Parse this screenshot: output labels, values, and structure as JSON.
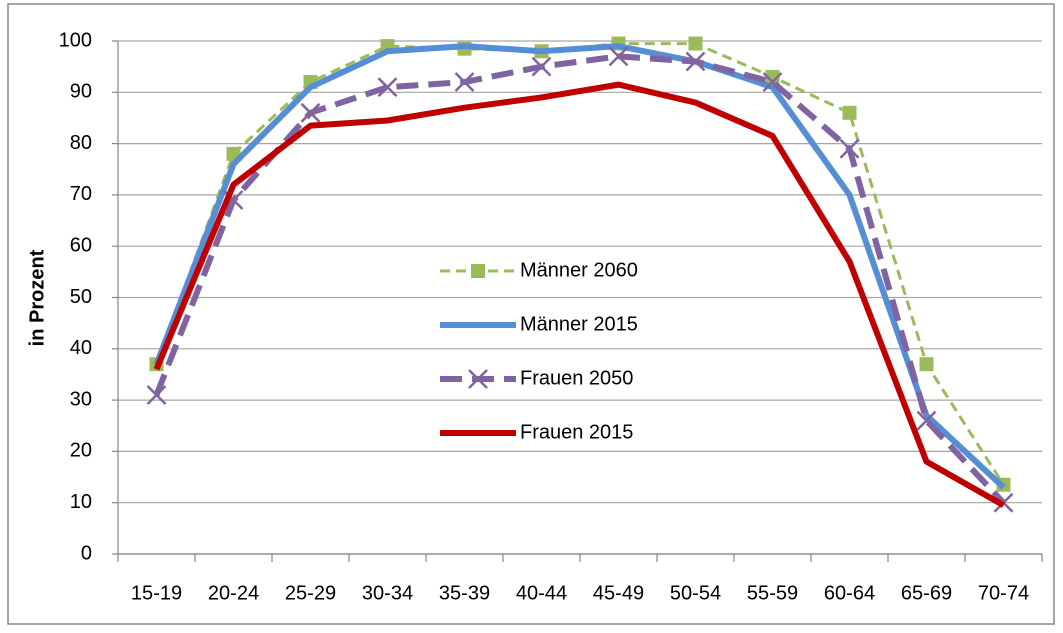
{
  "chart_data": {
    "type": "line",
    "y_label": "in Prozent",
    "categories": [
      "15-19",
      "20-24",
      "25-29",
      "30-34",
      "35-39",
      "40-44",
      "45-49",
      "50-54",
      "55-59",
      "60-64",
      "65-69",
      "70-74"
    ],
    "series": [
      {
        "name": "Männer 2060",
        "color": "#9bbb59",
        "style": "dotted-dash",
        "width": 3,
        "marker": "square",
        "values": [
          37,
          78,
          92,
          99,
          98.5,
          98,
          99.5,
          99.5,
          93,
          86,
          37,
          13.5
        ]
      },
      {
        "name": "Männer 2015",
        "color": "#558ed5",
        "style": "solid",
        "width": 6,
        "marker": "none",
        "values": [
          37,
          76,
          91,
          98,
          99,
          98,
          99,
          96,
          91,
          70,
          27,
          13
        ]
      },
      {
        "name": "Frauen 2050",
        "color": "#8064a2",
        "style": "long-dash",
        "width": 6,
        "marker": "x",
        "values": [
          31,
          69,
          86,
          91,
          92,
          95,
          97,
          96,
          92,
          79,
          26,
          10
        ]
      },
      {
        "name": "Frauen 2015",
        "color": "#c00000",
        "style": "solid",
        "width": 6,
        "marker": "none",
        "values": [
          36,
          72,
          83.5,
          84.5,
          87,
          89,
          91.5,
          88,
          81.5,
          57,
          18,
          9.5
        ]
      }
    ],
    "ylim": [
      0,
      100
    ],
    "yticks": [
      0,
      10,
      20,
      30,
      40,
      50,
      60,
      70,
      80,
      90,
      100
    ],
    "grid": true,
    "legend": "center"
  }
}
